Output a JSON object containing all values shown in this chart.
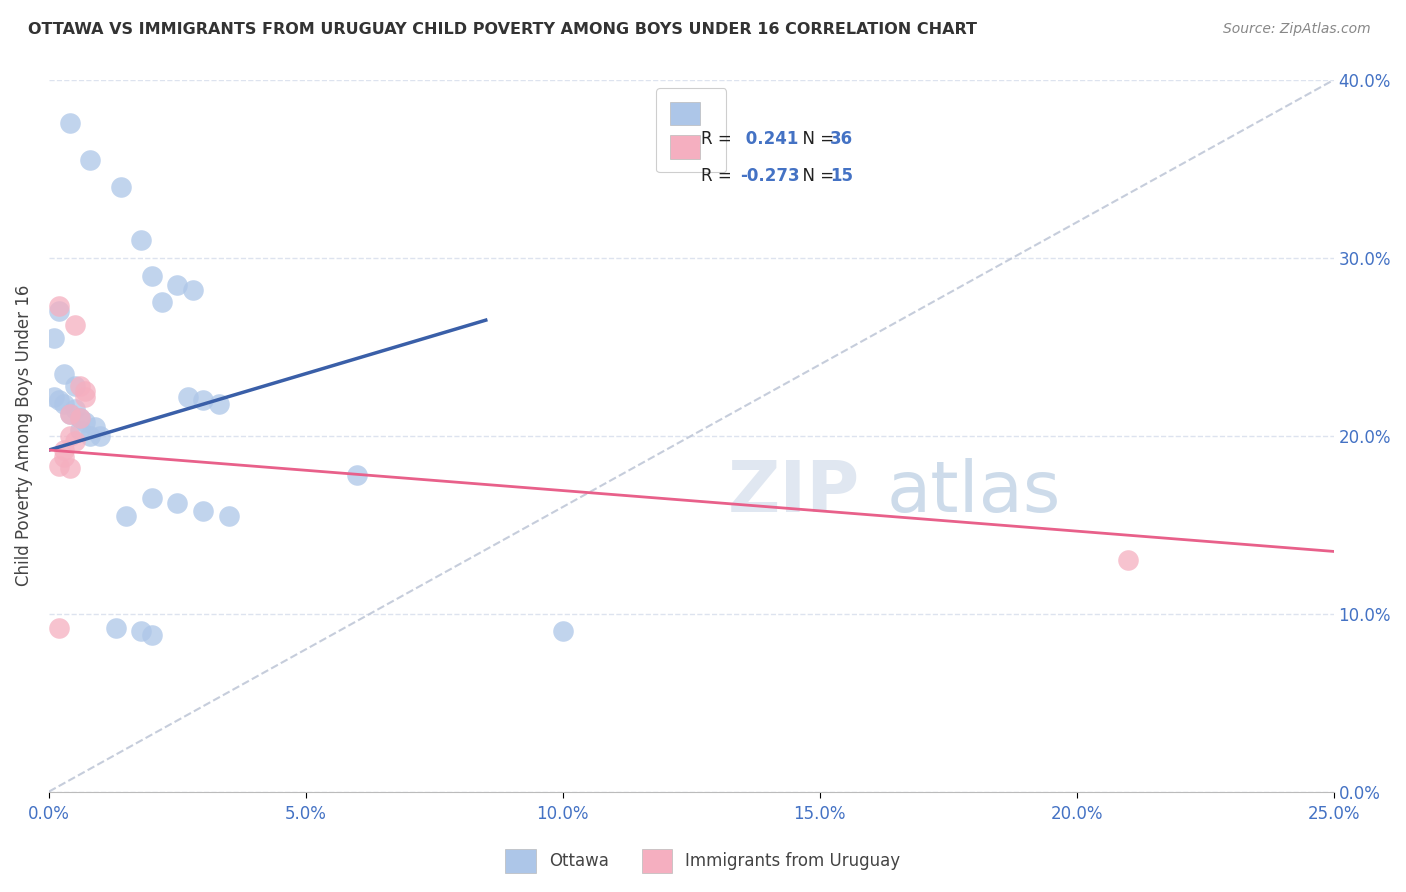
{
  "title": "OTTAWA VS IMMIGRANTS FROM URUGUAY CHILD POVERTY AMONG BOYS UNDER 16 CORRELATION CHART",
  "source": "Source: ZipAtlas.com",
  "ylabel": "Child Poverty Among Boys Under 16",
  "xlim": [
    0,
    0.25
  ],
  "ylim": [
    0,
    0.4
  ],
  "legend_labels": [
    "Ottawa",
    "Immigrants from Uruguay"
  ],
  "R_ottawa": 0.241,
  "N_ottawa": 36,
  "R_uruguay": -0.273,
  "N_uruguay": 15,
  "ottawa_color": "#adc6e8",
  "uruguay_color": "#f5afc0",
  "ottawa_line_color": "#3a5fa8",
  "uruguay_line_color": "#e8608a",
  "dashed_line_color": "#c0c8d8",
  "ottawa_line_x": [
    0.0,
    0.085
  ],
  "ottawa_line_y": [
    0.192,
    0.265
  ],
  "uruguay_line_x": [
    0.0,
    0.25
  ],
  "uruguay_line_y": [
    0.192,
    0.135
  ],
  "ottawa_scatter": [
    [
      0.004,
      0.376
    ],
    [
      0.008,
      0.355
    ],
    [
      0.014,
      0.34
    ],
    [
      0.018,
      0.31
    ],
    [
      0.02,
      0.29
    ],
    [
      0.025,
      0.285
    ],
    [
      0.028,
      0.282
    ],
    [
      0.022,
      0.275
    ],
    [
      0.002,
      0.27
    ],
    [
      0.001,
      0.255
    ],
    [
      0.003,
      0.235
    ],
    [
      0.005,
      0.228
    ],
    [
      0.001,
      0.222
    ],
    [
      0.002,
      0.22
    ],
    [
      0.003,
      0.218
    ],
    [
      0.005,
      0.215
    ],
    [
      0.004,
      0.212
    ],
    [
      0.006,
      0.21
    ],
    [
      0.007,
      0.208
    ],
    [
      0.009,
      0.205
    ],
    [
      0.006,
      0.203
    ],
    [
      0.008,
      0.2
    ],
    [
      0.01,
      0.2
    ],
    [
      0.027,
      0.222
    ],
    [
      0.03,
      0.22
    ],
    [
      0.033,
      0.218
    ],
    [
      0.02,
      0.165
    ],
    [
      0.025,
      0.162
    ],
    [
      0.03,
      0.158
    ],
    [
      0.035,
      0.155
    ],
    [
      0.015,
      0.155
    ],
    [
      0.013,
      0.092
    ],
    [
      0.018,
      0.09
    ],
    [
      0.02,
      0.088
    ],
    [
      0.06,
      0.178
    ],
    [
      0.1,
      0.09
    ]
  ],
  "uruguay_scatter": [
    [
      0.002,
      0.273
    ],
    [
      0.005,
      0.262
    ],
    [
      0.006,
      0.228
    ],
    [
      0.007,
      0.225
    ],
    [
      0.007,
      0.222
    ],
    [
      0.004,
      0.212
    ],
    [
      0.006,
      0.21
    ],
    [
      0.004,
      0.2
    ],
    [
      0.005,
      0.197
    ],
    [
      0.003,
      0.192
    ],
    [
      0.003,
      0.188
    ],
    [
      0.002,
      0.183
    ],
    [
      0.004,
      0.182
    ],
    [
      0.002,
      0.092
    ],
    [
      0.21,
      0.13
    ]
  ],
  "background_color": "#ffffff",
  "grid_color": "#dde3ef",
  "value_color": "#4472c4",
  "label_color": "#222222"
}
